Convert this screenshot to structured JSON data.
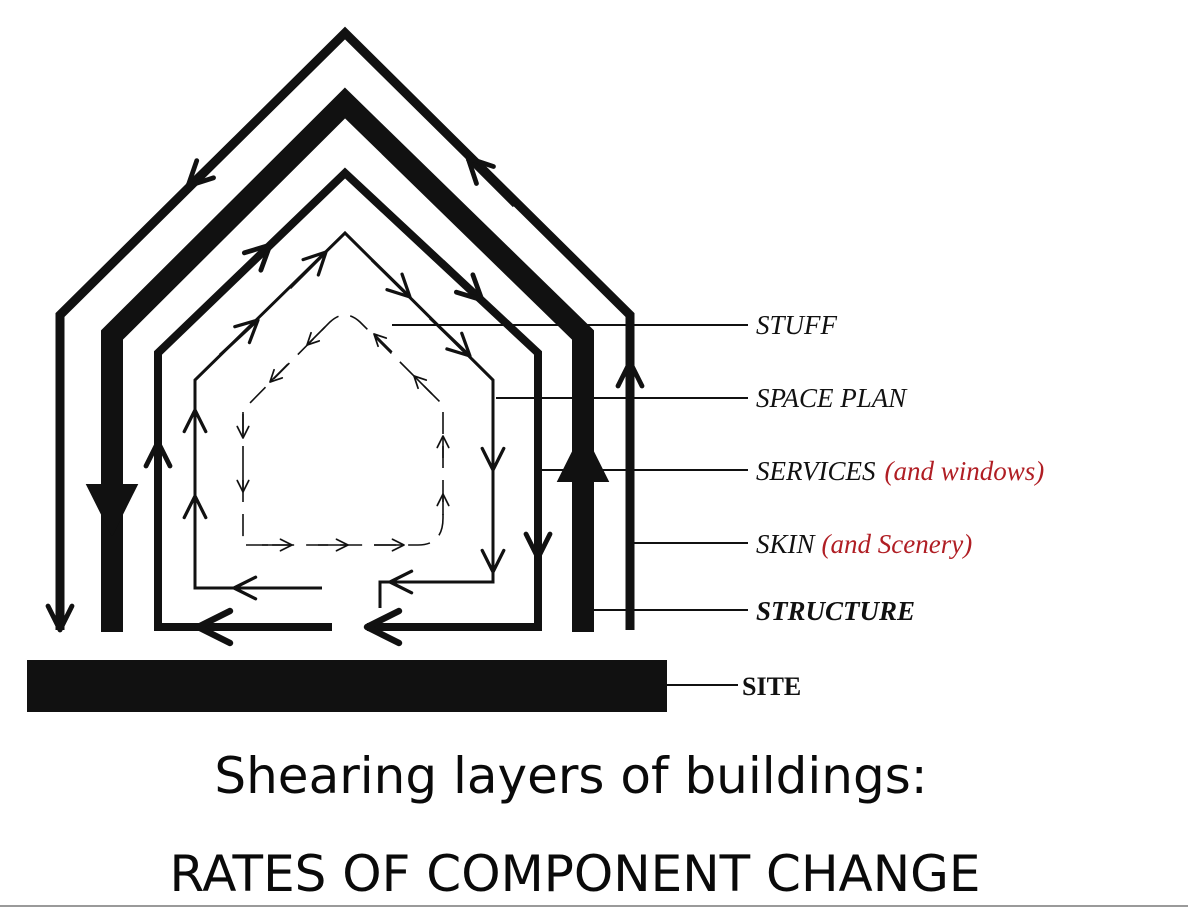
{
  "diagram": {
    "layers": [
      {
        "id": "stuff",
        "label": "STUFF",
        "extra": ""
      },
      {
        "id": "space-plan",
        "label": "SPACE PLAN",
        "extra": ""
      },
      {
        "id": "services",
        "label": "SERVICES",
        "extra": "(and windows)"
      },
      {
        "id": "skin",
        "label": "SKIN",
        "extra": "(and Scenery)"
      },
      {
        "id": "structure",
        "label": "STRUCTURE",
        "extra": ""
      },
      {
        "id": "site",
        "label": "SITE",
        "extra": ""
      }
    ],
    "colors": {
      "ink": "#111111",
      "accent": "#b01e24",
      "background": "#ffffff"
    }
  },
  "caption": {
    "line1": "Shearing layers of buildings:",
    "line2": "RATES OF COMPONENT CHANGE"
  }
}
